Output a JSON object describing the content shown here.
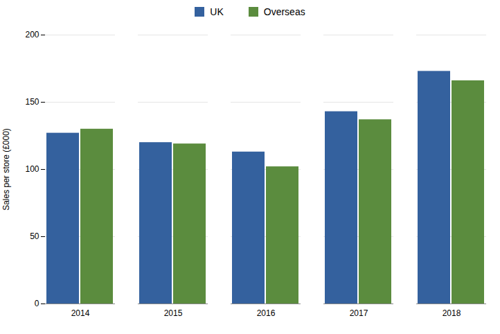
{
  "chart_data": {
    "type": "bar",
    "categories": [
      "2014",
      "2015",
      "2016",
      "2017",
      "2018"
    ],
    "series": [
      {
        "name": "UK",
        "color": "#34619e",
        "values": [
          127,
          120,
          113,
          143,
          173
        ]
      },
      {
        "name": "Overseas",
        "color": "#5b8c3e",
        "values": [
          130,
          119,
          102,
          137,
          166
        ]
      }
    ],
    "ylabel": "Sales per store (£000)",
    "ylim": [
      0,
      200
    ],
    "yticks": [
      0,
      50,
      100,
      150,
      200
    ],
    "grid": true,
    "legend": "top"
  }
}
